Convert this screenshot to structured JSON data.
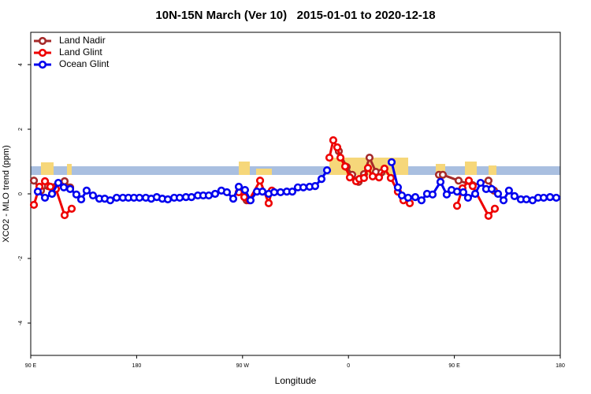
{
  "chart_data": {
    "type": "line",
    "title": "10N-15N March (Ver 10)   2015-01-01 to 2020-12-18",
    "x_label": "Longitude",
    "y_label": "XCO2 - MLO trend (ppm)",
    "xlim": [
      90,
      540
    ],
    "xticks": [
      {
        "value": 90,
        "label": "90 E"
      },
      {
        "value": 180,
        "label": "180"
      },
      {
        "value": 270,
        "label": "90 W"
      },
      {
        "value": 360,
        "label": "0"
      },
      {
        "value": 450,
        "label": "90 E"
      },
      {
        "value": 540,
        "label": "180"
      }
    ],
    "ylim": [
      -5,
      5
    ],
    "yticks": [
      -4,
      -2,
      0,
      2,
      4
    ],
    "legend": "top-left",
    "series": [
      {
        "name": "Land Nadir",
        "color": "#a52a2a",
        "x": [
          92.7,
          98.7,
          104.7,
          118.8,
          123.5,
          200,
          273.5,
          320,
          351.8,
          358.5,
          363.2,
          368.6,
          373.2,
          377.9,
          383.3,
          388,
          420,
          436.9,
          440.2,
          453.6,
          465.6,
          479,
          483.7
        ],
        "values": [
          0.41,
          0.1,
          0.24,
          0.39,
          0.2,
          null,
          -0.2,
          null,
          1.32,
          0.83,
          0.59,
          0.37,
          0.61,
          1.12,
          0.68,
          0.66,
          null,
          0.59,
          0.59,
          0.41,
          0.27,
          0.41,
          0.1
        ]
      },
      {
        "name": "Land Glint",
        "color": "#ee0000",
        "x": [
          92.7,
          97.4,
          102.1,
          106.7,
          111.4,
          118.8,
          124.8,
          200,
          266.8,
          271.5,
          275.5,
          284.9,
          292.2,
          294.9,
          320,
          343.8,
          347.1,
          350.5,
          353.2,
          357.2,
          361.2,
          366.5,
          369.2,
          373.2,
          376.6,
          380.6,
          386,
          390.6,
          396,
          402,
          406.7,
          412.1,
          430,
          452.3,
          456.9,
          462.3,
          465.6,
          479,
          484.4
        ],
        "values": [
          -0.34,
          0.22,
          0.39,
          0.22,
          0.15,
          -0.66,
          -0.46,
          null,
          0.05,
          -0.1,
          -0.2,
          0.41,
          -0.29,
          0.1,
          null,
          1.12,
          1.66,
          1.44,
          1.12,
          0.85,
          0.51,
          0.39,
          0.46,
          0.49,
          0.8,
          0.54,
          0.51,
          0.78,
          0.49,
          0.07,
          -0.2,
          -0.29,
          null,
          -0.37,
          0.17,
          0.41,
          0.24,
          -0.68,
          -0.46
        ]
      },
      {
        "name": "Ocean Glint",
        "color": "#0000ee",
        "x": [
          96,
          102.1,
          108.1,
          113.4,
          118.1,
          123.5,
          128.8,
          132.9,
          137.5,
          142.9,
          148.3,
          152.9,
          157.6,
          163,
          168.3,
          173,
          177.7,
          182.4,
          187.8,
          192.4,
          197.1,
          201.8,
          206.5,
          211.9,
          216.6,
          221.9,
          226.6,
          232,
          236.6,
          241.3,
          246.7,
          252,
          256.7,
          262.1,
          266.8,
          272.1,
          276.8,
          282.2,
          286.9,
          292.2,
          296.9,
          302.3,
          307.6,
          312.3,
          317,
          321.7,
          327,
          331.7,
          337.1,
          341.8,
          370,
          396.7,
          402,
          405.4,
          410.7,
          416.8,
          422.1,
          426.8,
          431.5,
          438.2,
          443.5,
          447.6,
          452.3,
          457.6,
          461.6,
          467.7,
          472.3,
          477,
          481.7,
          487.1,
          491.8,
          496.4,
          501.1,
          506.5,
          511.2,
          516.5,
          521.2,
          525.9,
          531.3,
          536.6
        ],
        "values": [
          0.07,
          -0.12,
          0,
          0.34,
          0.2,
          0.15,
          -0.02,
          -0.17,
          0.1,
          -0.05,
          -0.15,
          -0.15,
          -0.2,
          -0.12,
          -0.12,
          -0.12,
          -0.12,
          -0.12,
          -0.12,
          -0.15,
          -0.1,
          -0.15,
          -0.17,
          -0.12,
          -0.12,
          -0.1,
          -0.1,
          -0.05,
          -0.05,
          -0.05,
          0,
          0.1,
          0.05,
          -0.15,
          0.22,
          0.12,
          -0.2,
          0.07,
          0.07,
          0,
          0.05,
          0.05,
          0.07,
          0.07,
          0.2,
          0.2,
          0.22,
          0.24,
          0.46,
          0.73,
          null,
          0.98,
          0.2,
          -0.05,
          -0.12,
          -0.1,
          -0.2,
          0,
          -0.02,
          0.37,
          -0.02,
          0.12,
          0.07,
          0.05,
          -0.12,
          0,
          0.34,
          0.15,
          0.15,
          0,
          -0.2,
          0.1,
          -0.07,
          -0.17,
          -0.17,
          -0.2,
          -0.12,
          -0.12,
          -0.1,
          -0.12
        ]
      }
    ]
  }
}
